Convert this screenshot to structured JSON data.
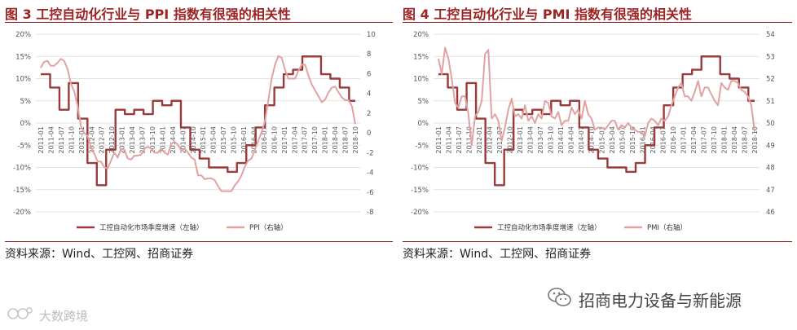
{
  "figures": [
    {
      "title": "图 3  工控自动化行业与 PPI 指数有很强的相关性",
      "source": "资料来源：Wind、工控网、招商证券"
    },
    {
      "title": "图 4  工控自动化行业与 PMI 指数有很强的相关性",
      "source": "资料来源：Wind、工控网、招商证券"
    }
  ],
  "footer": {
    "wechat_label": "招商电力设备与新能源",
    "watermark_text": "大数跨境"
  },
  "colors": {
    "title": "#9b2323",
    "primary_series": "#9b3a3a",
    "secondary_series": "#e2a2a2",
    "grid": "#d9d9d9"
  },
  "chart_data": [
    {
      "type": "line",
      "title": "",
      "x_ticks": [
        "2011-01",
        "2011-04",
        "2011-07",
        "2011-10",
        "2012-01",
        "2012-04",
        "2012-07",
        "2012-10",
        "2013-01",
        "2013-04",
        "2013-07",
        "2013-10",
        "2014-01",
        "2014-04",
        "2014-07",
        "2014-10",
        "2015-01",
        "2015-04",
        "2015-07",
        "2015-10",
        "2016-01",
        "2016-04",
        "2016-07",
        "2016-10",
        "2017-01",
        "2017-04",
        "2017-07",
        "2017-10",
        "2018-01",
        "2018-04",
        "2018-07",
        "2018-10"
      ],
      "y_left": {
        "ticks": [
          "20%",
          "15%",
          "10%",
          "5%",
          "0%",
          "-5%",
          "-10%",
          "-15%",
          "-20%"
        ],
        "range": [
          -20,
          20
        ]
      },
      "y_right": {
        "ticks": [
          "10",
          "8",
          "6",
          "4",
          "2",
          "0",
          "-2",
          "-4",
          "-6",
          "-8"
        ],
        "range": [
          -8,
          10
        ]
      },
      "grid": true,
      "legend_position": "bottom",
      "series": [
        {
          "name": "工控自动化市场季度增速（左轴）",
          "axis": "left",
          "style": "step",
          "values": [
            11,
            11,
            11,
            8,
            8,
            8,
            3,
            3,
            3,
            9,
            9,
            9,
            1,
            1,
            1,
            -9,
            -9,
            -9,
            -14,
            -14,
            -14,
            -6,
            -6,
            -6,
            3,
            3,
            3,
            2,
            2,
            2,
            3,
            3,
            3,
            2,
            2,
            2,
            5,
            5,
            5,
            4,
            4,
            4,
            5,
            5,
            5,
            -1,
            -1,
            -1,
            -6,
            -6,
            -6,
            -8,
            -8,
            -8,
            -10,
            -10,
            -10,
            -10,
            -10,
            -10,
            -11,
            -11,
            -11,
            -9,
            -9,
            -9,
            -5,
            -5,
            -5,
            -1,
            -1,
            -1,
            4,
            4,
            4,
            8,
            8,
            8,
            11,
            11,
            11,
            12,
            12,
            12,
            15,
            15,
            15,
            15,
            15,
            15,
            11,
            11,
            11,
            10,
            10,
            10,
            8,
            8,
            8,
            5,
            5,
            5
          ]
        },
        {
          "name": "PPI（右轴）",
          "axis": "right",
          "style": "line",
          "values": [
            6.6,
            7.2,
            7.3,
            6.8,
            6.8,
            7.1,
            7.5,
            7.3,
            6.5,
            5,
            4.2,
            2.8,
            0.7,
            0,
            -0.3,
            -1.4,
            -2.1,
            -2.9,
            -2.9,
            -3.5,
            -3.6,
            -2.8,
            -2,
            -2.5,
            -1.6,
            -1.7,
            -2.6,
            -2.7,
            -2.3,
            -2.3,
            -2.2,
            -1.6,
            -1.4,
            -1.6,
            -2,
            -2,
            -1.6,
            -2,
            -2.2,
            -1.1,
            -0.9,
            -1.2,
            -1.8,
            -1.6,
            -2.0,
            -2.5,
            -2.7,
            -4.3,
            -4.3,
            -4.7,
            -4.6,
            -4.6,
            -4.8,
            -5.4,
            -5.9,
            -5.9,
            -5.9,
            -5.9,
            -5.3,
            -4.9,
            -4.3,
            -3.4,
            -2.8,
            -2.6,
            -1.7,
            -0.8,
            0.1,
            1.2,
            3.3,
            5.5,
            6.9,
            7.8,
            7.6,
            6.4,
            5.5,
            5.5,
            5.5,
            6.3,
            6.9,
            6.9,
            5.8,
            4.9,
            4.3,
            3.7,
            3.1,
            3.4,
            4.1,
            4.6,
            4.7,
            4.1,
            3.6,
            3.3,
            3.3,
            2.7,
            0.9
          ]
        }
      ]
    },
    {
      "type": "line",
      "title": "",
      "x_ticks": [
        "2011-01",
        "2011-04",
        "2011-07",
        "2011-10",
        "2012-01",
        "2012-04",
        "2012-07",
        "2012-10",
        "2013-01",
        "2013-04",
        "2013-07",
        "2013-10",
        "2014-01",
        "2014-04",
        "2014-07",
        "2014-10",
        "2015-01",
        "2015-04",
        "2015-07",
        "2015-10",
        "2016-01",
        "2016-04",
        "2016-07",
        "2016-10",
        "2017-01",
        "2017-04",
        "2017-07",
        "2017-10",
        "2018-01",
        "2018-04",
        "2018-07",
        "2018-10"
      ],
      "y_left": {
        "ticks": [
          "20%",
          "15%",
          "10%",
          "5%",
          "0%",
          "-5%",
          "-10%",
          "-15%",
          "-20%"
        ],
        "range": [
          -20,
          20
        ]
      },
      "y_right": {
        "ticks": [
          "54",
          "53",
          "52",
          "51",
          "50",
          "49",
          "48",
          "47",
          "46"
        ],
        "range": [
          46,
          54
        ]
      },
      "grid": true,
      "legend_position": "bottom",
      "series": [
        {
          "name": "工控自动化市场季度增速（左轴）",
          "axis": "left",
          "style": "step",
          "values": [
            11,
            11,
            11,
            8,
            8,
            8,
            3,
            3,
            3,
            9,
            9,
            9,
            1,
            1,
            1,
            -9,
            -9,
            -9,
            -14,
            -14,
            -14,
            -6,
            -6,
            -6,
            3,
            3,
            3,
            2,
            2,
            2,
            3,
            3,
            3,
            2,
            2,
            2,
            5,
            5,
            5,
            4,
            4,
            4,
            5,
            5,
            5,
            -1,
            -1,
            -1,
            -6,
            -6,
            -6,
            -8,
            -8,
            -8,
            -10,
            -10,
            -10,
            -10,
            -10,
            -10,
            -11,
            -11,
            -11,
            -9,
            -9,
            -9,
            -5,
            -5,
            -5,
            -1,
            -1,
            -1,
            4,
            4,
            4,
            8,
            8,
            8,
            11,
            11,
            11,
            12,
            12,
            12,
            15,
            15,
            15,
            15,
            15,
            15,
            11,
            11,
            11,
            10,
            10,
            10,
            8,
            8,
            8,
            5,
            5,
            5
          ]
        },
        {
          "name": "PMI（右轴）",
          "axis": "right",
          "style": "line",
          "values": [
            52.9,
            52.2,
            53.4,
            52.9,
            52.0,
            50.9,
            50.7,
            51.2,
            51.2,
            50.4,
            49.0,
            50.3,
            50.5,
            51.0,
            53.1,
            53.3,
            50.2,
            50.4,
            50.1,
            49.2,
            49.8,
            50.6,
            51.1,
            50.3,
            50.4,
            50.2,
            50.8,
            50.1,
            50.3,
            50.0,
            50.4,
            50.2,
            51.0,
            50.9,
            50.3,
            50.2,
            50.5,
            49.9,
            50.1,
            50.1,
            50.7,
            50.4,
            50.6,
            50.2,
            51.0,
            50.4,
            50.2,
            49.7,
            49.8,
            49.8,
            49.7,
            49.9,
            50.1,
            50.1,
            49.7,
            49.9,
            49.8,
            50.0,
            49.8,
            49.7,
            49.6,
            49.6,
            49.4,
            50.0,
            50.2,
            50.1,
            49.9,
            50.2,
            50.1,
            50.3,
            50.8,
            51.2,
            51.6,
            51.8,
            51.2,
            51.2,
            51.0,
            51.4,
            51.9,
            51.2,
            51.6,
            51.6,
            51.3,
            51.0,
            50.8,
            51.8,
            51.6,
            51.5,
            51.9,
            51.9,
            51.8,
            51.5,
            51.4,
            51.2,
            50.8,
            49.6
          ]
        }
      ]
    }
  ]
}
